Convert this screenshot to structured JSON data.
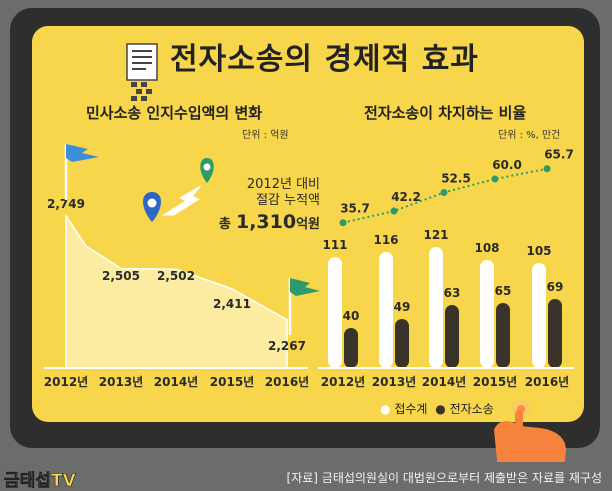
{
  "title": "전자소송의 경제적 효과",
  "left_chart": {
    "subtitle": "민사소송 인지수입액의 변화",
    "unit": "단위 : 억원",
    "annotation_line1": "2012년 대비",
    "annotation_line2": "절감 누적액",
    "annotation_total_prefix": "총",
    "annotation_total_value": "1,310",
    "annotation_total_unit": "억원"
  },
  "right_chart": {
    "subtitle": "전자소송이 차지하는 비율",
    "unit": "단위 : %, 만건",
    "legend": [
      "접수계",
      "전자소송"
    ]
  },
  "source": "[자료] 금태섭의원실이 대법원으로부터 제출받은 자료를 재구성",
  "logo": "금태섭TV",
  "colors": {
    "background": "#f7d64c",
    "area": "#fbeca2",
    "accent_green": "#2e9a6a",
    "dark_bar": "#3a3329",
    "white_bar": "#ffffff"
  },
  "chart_data": [
    {
      "type": "area",
      "title": "민사소송 인지수입액의 변화",
      "categories": [
        "2012년",
        "2013년",
        "2014년",
        "2015년",
        "2016년"
      ],
      "values": [
        2749,
        2505,
        2502,
        2411,
        2267
      ],
      "value_labels": [
        "2,749",
        "2,505",
        "2,502",
        "2,411",
        "2,267"
      ],
      "ylim": [
        2150,
        2800
      ]
    },
    {
      "type": "bar",
      "title": "전자소송이 차지하는 비율",
      "categories": [
        "2012년",
        "2013년",
        "2014년",
        "2015년",
        "2016년"
      ],
      "series": [
        {
          "name": "접수계",
          "values": [
            111,
            116,
            121,
            108,
            105
          ]
        },
        {
          "name": "전자소송",
          "values": [
            40,
            49,
            63,
            65,
            69
          ]
        }
      ],
      "line_values": [
        35.7,
        42.2,
        52.5,
        60.0,
        65.7
      ],
      "line_labels": [
        "35.7",
        "42.2",
        "52.5",
        "60.0",
        "65.7"
      ],
      "ylim": [
        0,
        130
      ],
      "line_ylim": [
        30,
        70
      ]
    }
  ]
}
